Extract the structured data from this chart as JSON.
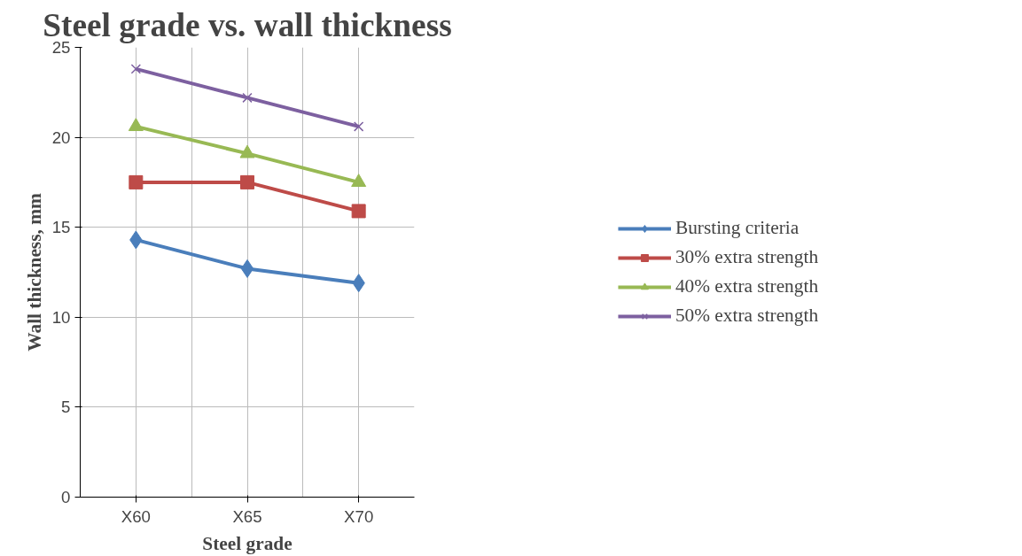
{
  "chart_data": {
    "type": "line",
    "title": "Steel grade vs. wall thickness",
    "xlabel": "Steel grade",
    "ylabel": "Wall thickness, mm",
    "categories": [
      "X60",
      "X65",
      "X70"
    ],
    "series": [
      {
        "name": "Bursting criteria",
        "color": "#4a7ebb",
        "marker": "diamond",
        "values": [
          14.3,
          12.7,
          11.9
        ]
      },
      {
        "name": "30% extra strength",
        "color": "#be4b48",
        "marker": "square",
        "values": [
          17.5,
          17.5,
          15.9
        ]
      },
      {
        "name": "40% extra strength",
        "color": "#98b954",
        "marker": "triangle",
        "values": [
          20.6,
          19.1,
          17.5
        ]
      },
      {
        "name": "50% extra strength",
        "color": "#7d60a0",
        "marker": "cross",
        "values": [
          23.8,
          22.2,
          20.6
        ]
      }
    ],
    "ylim": [
      0,
      25
    ],
    "yticks": [
      0,
      5,
      10,
      15,
      20,
      25
    ],
    "grid": true,
    "legend": "right",
    "line_style": "solid"
  }
}
